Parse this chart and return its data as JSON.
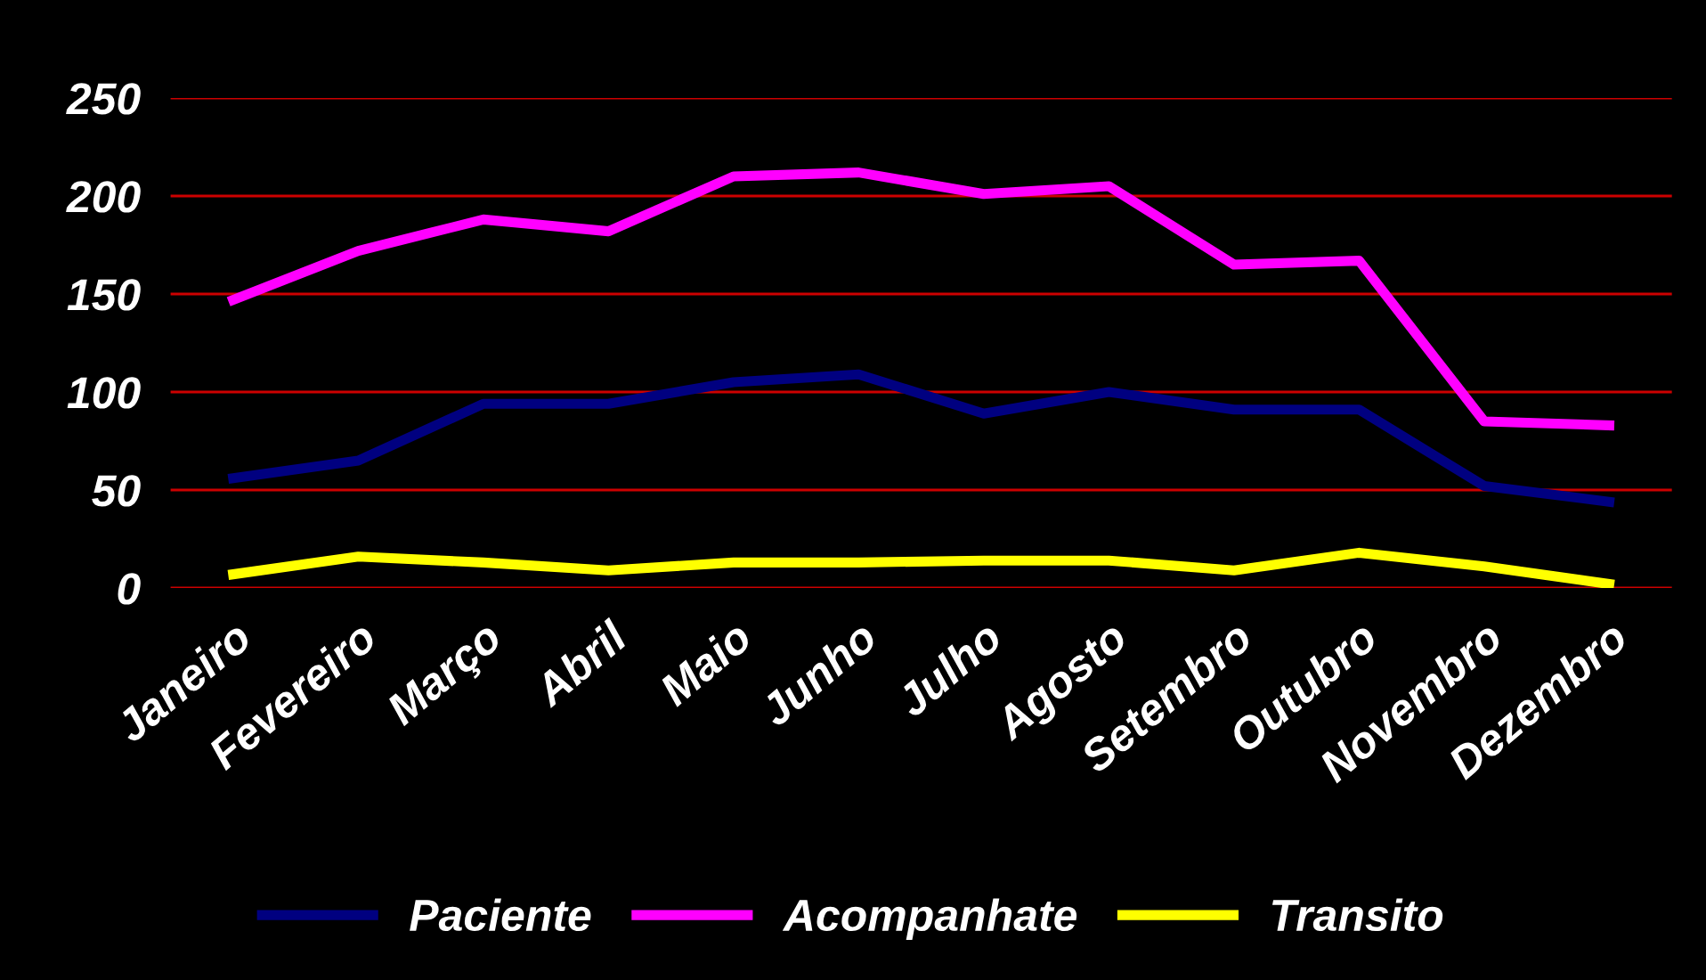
{
  "chart_data": {
    "type": "line",
    "categories": [
      "Janeiro",
      "Fevereiro",
      "Março",
      "Abril",
      "Maio",
      "Junho",
      "Julho",
      "Agosto",
      "Setembro",
      "Outubro",
      "Novembro",
      "Dezembro"
    ],
    "series": [
      {
        "name": "Paciente",
        "color": "#000080",
        "values": [
          56,
          65,
          94,
          94,
          105,
          109,
          89,
          100,
          91,
          91,
          52,
          44
        ]
      },
      {
        "name": "Acompanhate",
        "color": "#ff00ff",
        "values": [
          147,
          172,
          188,
          182,
          210,
          212,
          201,
          205,
          165,
          167,
          85,
          83
        ]
      },
      {
        "name": "Transito",
        "color": "#ffff00",
        "values": [
          7,
          16,
          13,
          9,
          13,
          13,
          14,
          14,
          9,
          18,
          11,
          2
        ]
      }
    ],
    "ylim": [
      0,
      250
    ],
    "yticks": [
      0,
      50,
      100,
      150,
      200,
      250
    ],
    "grid": "y",
    "legend": "bottom",
    "marker": "none",
    "line_style": "solid"
  }
}
